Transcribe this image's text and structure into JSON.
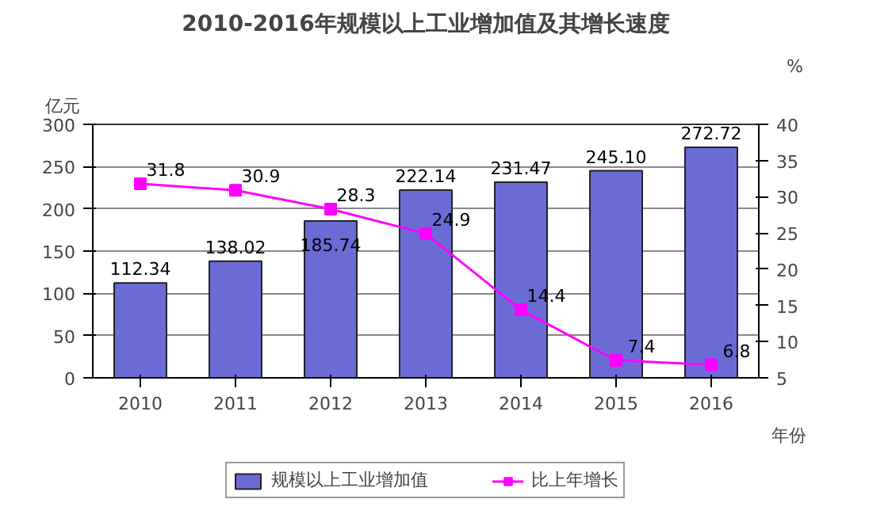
{
  "chart_data": {
    "type": "bar",
    "title": "2010-2016年规模以上工业增加值及其增长速度",
    "xlabel": "年份",
    "ylabel": "亿元",
    "y2label": "%",
    "categories": [
      "2010",
      "2011",
      "2012",
      "2013",
      "2014",
      "2015",
      "2016"
    ],
    "series": [
      {
        "name": "规模以上工业增加值",
        "color": "#6b6bd6",
        "values": [
          112.34,
          138.02,
          185.74,
          222.14,
          231.47,
          245.1,
          272.72
        ],
        "value_labels": [
          "112.34",
          "138.02",
          "185.74",
          "222.14",
          "231.47",
          "245.10",
          "272.72"
        ]
      },
      {
        "name": "比上年增长",
        "type": "line",
        "axis": "y2",
        "color": "#ff00ff",
        "marker": "square",
        "values": [
          31.8,
          30.9,
          28.3,
          24.9,
          14.4,
          7.4,
          6.8
        ],
        "value_labels": [
          "31.8",
          "30.9",
          "28.3",
          "24.9",
          "14.4",
          "7.4",
          "6.8"
        ]
      }
    ],
    "ylim": [
      0,
      300
    ],
    "yticks": [
      0,
      50,
      100,
      150,
      200,
      250,
      300
    ],
    "y2lim": [
      5,
      40
    ],
    "y2ticks": [
      5,
      10,
      15,
      20,
      25,
      30,
      35,
      40
    ],
    "grid": "y",
    "legend": "bottom"
  }
}
